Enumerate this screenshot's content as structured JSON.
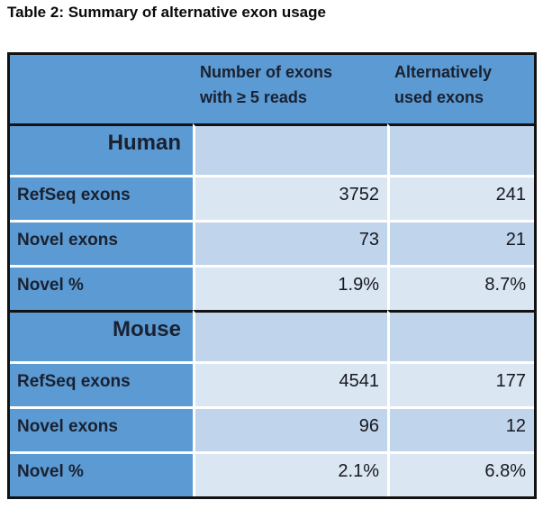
{
  "caption": "Table 2: Summary of alternative exon usage",
  "table": {
    "header": {
      "exons_col_line1": "Number of exons",
      "exons_col_line2": "with ≥ 5 reads",
      "alt_col_line1": "Alternatively",
      "alt_col_line2": "used exons"
    },
    "sections": [
      {
        "name": "Human",
        "rows": [
          {
            "label": "RefSeq exons",
            "exons_ge5": "3752",
            "alt_used": "241"
          },
          {
            "label": "Novel exons",
            "exons_ge5": "73",
            "alt_used": "21"
          },
          {
            "label": "Novel %",
            "exons_ge5": "1.9%",
            "alt_used": "8.7%"
          }
        ]
      },
      {
        "name": "Mouse",
        "rows": [
          {
            "label": "RefSeq exons",
            "exons_ge5": "4541",
            "alt_used": "177"
          },
          {
            "label": "Novel exons",
            "exons_ge5": "96",
            "alt_used": "12"
          },
          {
            "label": "Novel %",
            "exons_ge5": "2.1%",
            "alt_used": "6.8%"
          }
        ]
      }
    ]
  },
  "colors": {
    "accent_blue": "#5b9ad3",
    "row_mid": "#c0d4ec",
    "row_light": "#dbe6f3",
    "border_dark": "#121212",
    "separator_white": "#ffffff",
    "text_dark": "#1a2130",
    "title_color": "#0a0a0a"
  }
}
